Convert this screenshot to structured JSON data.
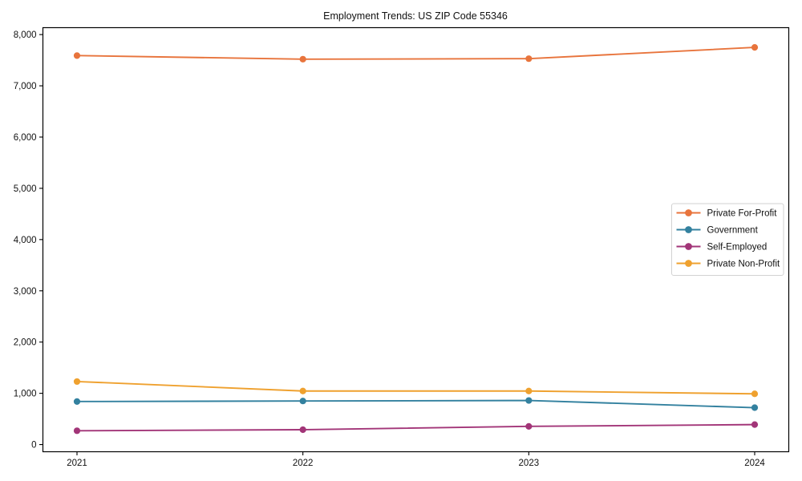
{
  "chart_data": {
    "type": "line",
    "title": "Employment Trends: US ZIP Code 55346",
    "categories": [
      "2021",
      "2022",
      "2023",
      "2024"
    ],
    "series": [
      {
        "name": "Private For-Profit",
        "color": "#e8743c",
        "values": [
          7590,
          7520,
          7530,
          7750
        ]
      },
      {
        "name": "Government",
        "color": "#33819f",
        "values": [
          840,
          850,
          860,
          720
        ]
      },
      {
        "name": "Self-Employed",
        "color": "#a23578",
        "values": [
          270,
          290,
          355,
          390
        ]
      },
      {
        "name": "Private Non-Profit",
        "color": "#efa12f",
        "values": [
          1230,
          1045,
          1045,
          990
        ]
      }
    ],
    "xlabel": "",
    "ylabel": "",
    "ylim": [
      -140,
      8135
    ],
    "yticks": [
      0,
      1000,
      2000,
      3000,
      4000,
      5000,
      6000,
      7000,
      8000
    ],
    "ytick_labels": [
      "0",
      "1,000",
      "2,000",
      "3,000",
      "4,000",
      "5,000",
      "6,000",
      "7,000",
      "8,000"
    ],
    "grid": false,
    "marker": "circle",
    "legend_position": "center right",
    "axis_color": "#000000",
    "legend_border_color": "#d2d2d2",
    "legend_background": "#ffffff"
  }
}
